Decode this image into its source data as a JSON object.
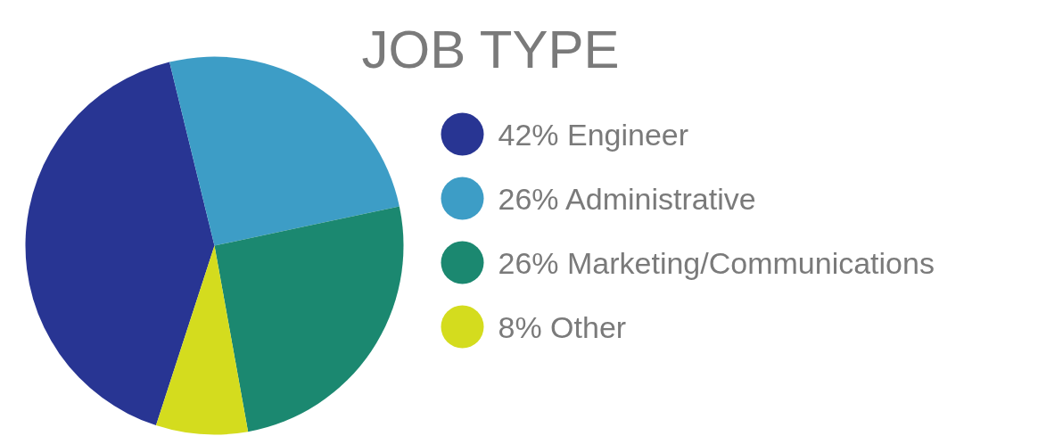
{
  "chart_data": {
    "type": "pie",
    "title": "JOB TYPE",
    "categories": [
      "Engineer",
      "Administrative",
      "Marketing/Communications",
      "Other"
    ],
    "values": [
      42,
      26,
      26,
      8
    ],
    "value_labels": [
      "42%",
      "26%",
      "26%",
      "8%"
    ],
    "colors": [
      "#283593",
      "#3d9dc6",
      "#1b8870",
      "#d4dc1e"
    ],
    "legend": "right"
  }
}
